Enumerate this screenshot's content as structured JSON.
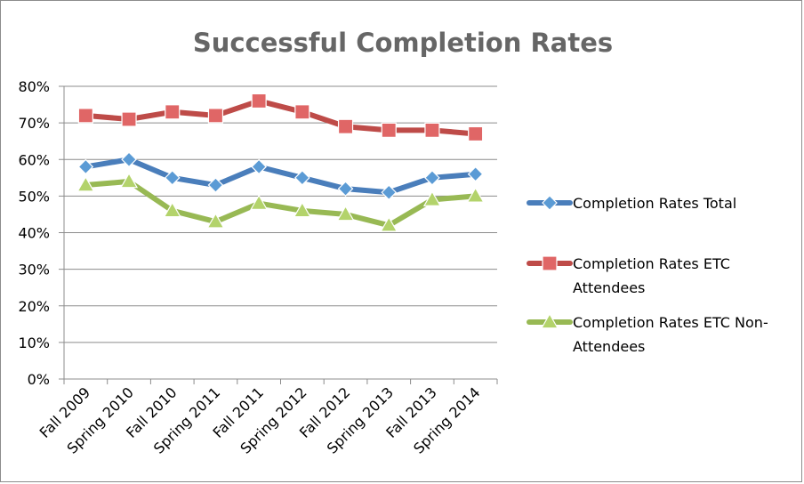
{
  "chart_data": {
    "type": "line",
    "title": "Successful Completion Rates",
    "xlabel": "",
    "ylabel": "",
    "categories": [
      "Fall 2009",
      "Spring 2010",
      "Fall 2010",
      "Spring 2011",
      "Fall 2011",
      "Spring 2012",
      "Fall 2012",
      "Spring 2013",
      "Fall 2013",
      "Spring 2014"
    ],
    "ylim": [
      0,
      80
    ],
    "yticks": [
      "0%",
      "10%",
      "20%",
      "30%",
      "40%",
      "50%",
      "60%",
      "70%",
      "80%"
    ],
    "grid": true,
    "legend_position": "right",
    "series": [
      {
        "name": "Completion Rates Total",
        "legend_lines": [
          "Completion Rates Total"
        ],
        "marker": "diamond",
        "color": "#4a7ebb",
        "values": [
          58,
          60,
          55,
          53,
          58,
          55,
          52,
          51,
          55,
          56
        ]
      },
      {
        "name": "Completion Rates ETC Attendees",
        "legend_lines": [
          "Completion Rates ETC",
          "Attendees"
        ],
        "marker": "square",
        "color": "#be4b48",
        "values": [
          72,
          71,
          73,
          72,
          76,
          73,
          69,
          68,
          68,
          67
        ]
      },
      {
        "name": "Completion Rates ETC Non-Attendees",
        "legend_lines": [
          "Completion Rates ETC Non-",
          "Attendees"
        ],
        "marker": "triangle",
        "color": "#98b954",
        "values": [
          53,
          54,
          46,
          43,
          48,
          46,
          45,
          42,
          49,
          50
        ]
      }
    ]
  }
}
